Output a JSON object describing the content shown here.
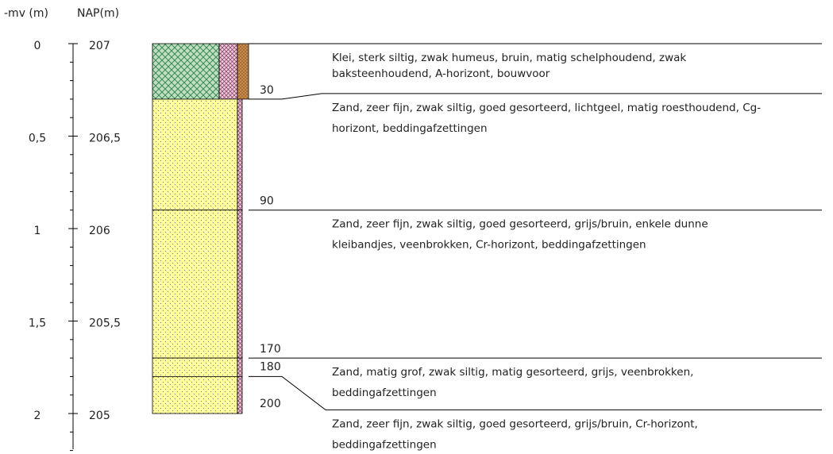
{
  "axis": {
    "depth_label": "-mv (m)",
    "nap_label": "NAP(m)",
    "depth_ticks": [
      "0",
      "0,5",
      "1",
      "1,5",
      "2"
    ],
    "nap_ticks": [
      "207",
      "206,5",
      "206",
      "205,5",
      "205"
    ]
  },
  "layers": [
    {
      "top": 0,
      "bottom": 30,
      "bottom_label": "30",
      "lines": [
        "Klei, sterk siltig, zwak humeus, bruin, matig schelphoudend, zwak",
        "baksteenhoudend, A-horizont, bouwvoor"
      ]
    },
    {
      "top": 30,
      "bottom": 90,
      "bottom_label": "90",
      "lines": [
        "Zand, zeer fijn, zwak siltig, goed gesorteerd, lichtgeel, matig roesthoudend, Cg-",
        "horizont, beddingafzettingen"
      ]
    },
    {
      "top": 90,
      "bottom": 170,
      "bottom_label": "170",
      "lines": [
        "Zand, zeer fijn, zwak siltig, goed gesorteerd, grijs/bruin, enkele dunne",
        "kleibandjes, veenbrokken, Cr-horizont, beddingafzettingen"
      ]
    },
    {
      "top": 170,
      "bottom": 180,
      "bottom_label": "180",
      "lines": [
        "Zand, matig grof, zwak siltig, matig gesorteerd, grijs, veenbrokken,",
        "beddingafzettingen"
      ]
    },
    {
      "top": 180,
      "bottom": 200,
      "bottom_label": "200",
      "lines": [
        "Zand, zeer fijn, zwak siltig, goed gesorteerd, grijs/bruin, Cr-horizont,",
        "beddingafzettingen"
      ]
    }
  ]
}
